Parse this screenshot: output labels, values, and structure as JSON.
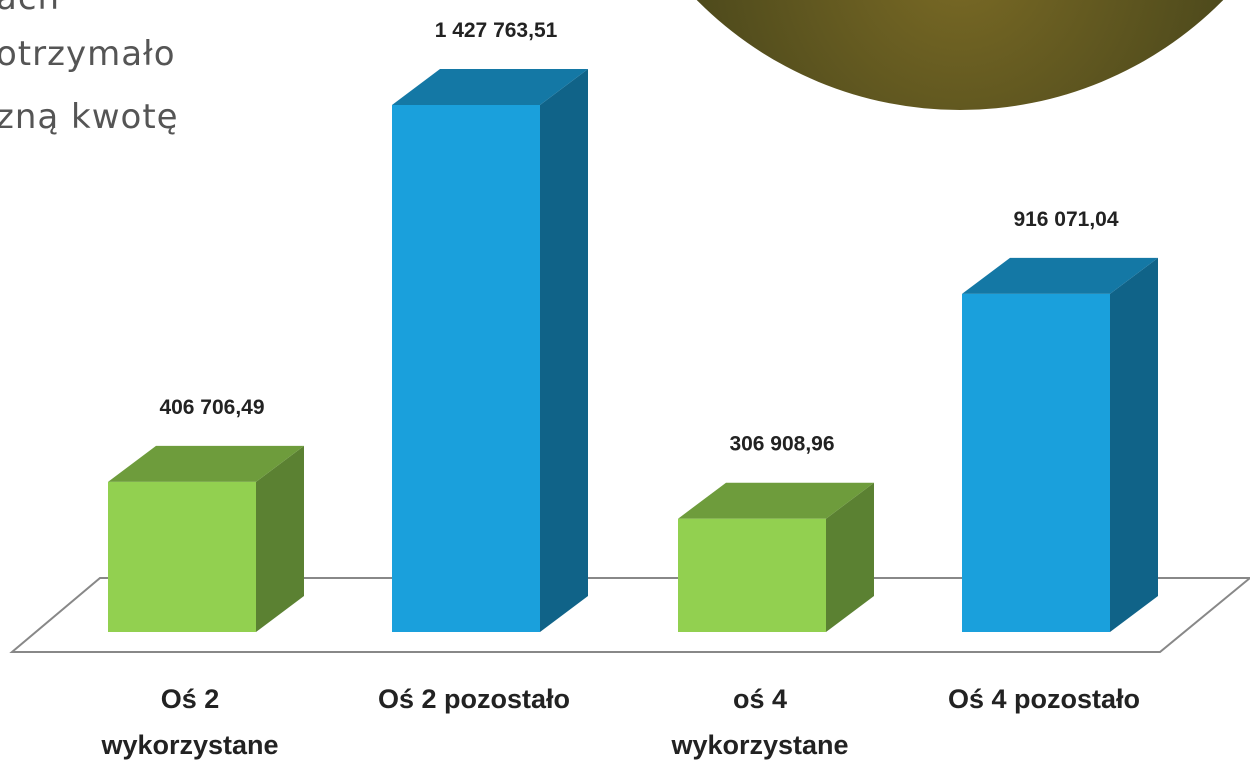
{
  "header": {
    "lines": [
      "ach",
      "otrzymało",
      "zną kwotę"
    ]
  },
  "chart_data": {
    "type": "bar3d",
    "categories": [
      "Oś 2 wykorzystane",
      "Oś 2 pozostało",
      "oś 4 wykorzystane",
      "Oś 4 pozostało"
    ],
    "values": [
      406706.49,
      1427763.51,
      306908.96,
      916071.04
    ],
    "value_labels": [
      "406 706,49",
      "1 427 763,51",
      "306 908,96",
      "916 071,04"
    ],
    "colors": [
      "#92d050",
      "#1aa0dc",
      "#92d050",
      "#1aa0dc"
    ]
  }
}
